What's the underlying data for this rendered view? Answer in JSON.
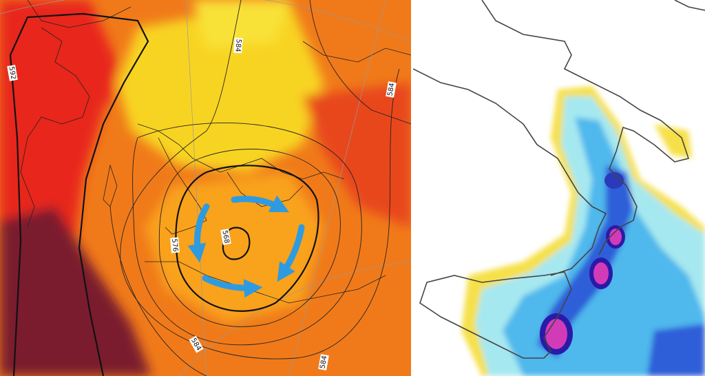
{
  "left_map": {
    "contour_labels": [
      "592",
      "584",
      "584",
      "584",
      "584",
      "576",
      "568"
    ]
  }
}
